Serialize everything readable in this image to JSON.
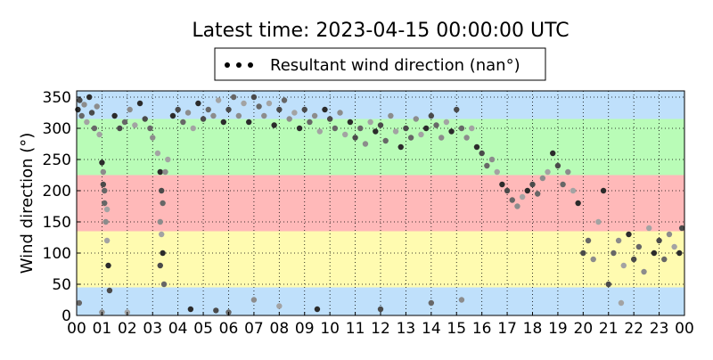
{
  "chart_data": {
    "type": "scatter",
    "title": "Latest time: 2023-04-15 00:00:00 UTC",
    "xlabel": "",
    "ylabel": "Wind direction (°)",
    "xlim": [
      0,
      24
    ],
    "ylim": [
      0,
      360
    ],
    "x_ticks": [
      "00",
      "01",
      "02",
      "03",
      "04",
      "05",
      "06",
      "07",
      "08",
      "09",
      "10",
      "11",
      "12",
      "13",
      "14",
      "15",
      "16",
      "17",
      "18",
      "19",
      "20",
      "21",
      "22",
      "23",
      "00"
    ],
    "y_ticks": [
      0,
      50,
      100,
      150,
      200,
      250,
      300,
      350
    ],
    "grid": true,
    "legend": {
      "placement": "top-center",
      "label": "Resultant wind direction (nan°)"
    },
    "bands": [
      {
        "from": 315,
        "to": 360,
        "color": "#bfe0fb"
      },
      {
        "from": 225,
        "to": 315,
        "color": "#b9fcb7"
      },
      {
        "from": 135,
        "to": 225,
        "color": "#ffb9b9"
      },
      {
        "from": 45,
        "to": 135,
        "color": "#fffbb0"
      },
      {
        "from": 0,
        "to": 45,
        "color": "#bfe0fb"
      }
    ],
    "series": [
      {
        "marker_colors": [
          "#2b2b2b",
          "#4a4a4a",
          "#676767",
          "#8c8c8c",
          "#a3a3a3"
        ],
        "points": [
          [
            0.05,
            330
          ],
          [
            0.12,
            345
          ],
          [
            0.2,
            320
          ],
          [
            0.3,
            338
          ],
          [
            0.4,
            310
          ],
          [
            0.5,
            350
          ],
          [
            0.6,
            325
          ],
          [
            0.7,
            300
          ],
          [
            0.8,
            335
          ],
          [
            0.9,
            290
          ],
          [
            1.0,
            245
          ],
          [
            1.05,
            210
          ],
          [
            1.1,
            180
          ],
          [
            1.15,
            150
          ],
          [
            1.2,
            120
          ],
          [
            1.25,
            80
          ],
          [
            1.3,
            40
          ],
          [
            1.1,
            200
          ],
          [
            1.05,
            230
          ],
          [
            1.2,
            170
          ],
          [
            1.5,
            320
          ],
          [
            1.7,
            300
          ],
          [
            1.9,
            310
          ],
          [
            2.1,
            330
          ],
          [
            2.3,
            305
          ],
          [
            2.5,
            340
          ],
          [
            2.7,
            315
          ],
          [
            2.9,
            300
          ],
          [
            3.0,
            285
          ],
          [
            3.2,
            260
          ],
          [
            3.3,
            230
          ],
          [
            3.35,
            200
          ],
          [
            3.4,
            180
          ],
          [
            3.3,
            150
          ],
          [
            3.35,
            130
          ],
          [
            3.4,
            100
          ],
          [
            3.3,
            80
          ],
          [
            3.45,
            50
          ],
          [
            3.5,
            230
          ],
          [
            3.6,
            250
          ],
          [
            3.8,
            320
          ],
          [
            4.0,
            330
          ],
          [
            4.2,
            310
          ],
          [
            4.4,
            325
          ],
          [
            4.6,
            300
          ],
          [
            4.8,
            340
          ],
          [
            5.0,
            315
          ],
          [
            5.2,
            330
          ],
          [
            5.4,
            320
          ],
          [
            5.6,
            345
          ],
          [
            5.8,
            310
          ],
          [
            6.0,
            330
          ],
          [
            6.2,
            350
          ],
          [
            6.4,
            320
          ],
          [
            6.6,
            340
          ],
          [
            6.8,
            310
          ],
          [
            7.0,
            350
          ],
          [
            7.2,
            335
          ],
          [
            7.4,
            320
          ],
          [
            7.6,
            340
          ],
          [
            7.8,
            305
          ],
          [
            8.0,
            330
          ],
          [
            8.2,
            345
          ],
          [
            8.4,
            315
          ],
          [
            8.6,
            325
          ],
          [
            8.8,
            300
          ],
          [
            9.0,
            330
          ],
          [
            9.2,
            310
          ],
          [
            9.4,
            320
          ],
          [
            9.6,
            295
          ],
          [
            9.8,
            330
          ],
          [
            10.0,
            315
          ],
          [
            10.2,
            300
          ],
          [
            10.4,
            325
          ],
          [
            10.6,
            290
          ],
          [
            10.8,
            310
          ],
          [
            11.0,
            285
          ],
          [
            11.2,
            300
          ],
          [
            11.4,
            275
          ],
          [
            11.6,
            310
          ],
          [
            11.8,
            295
          ],
          [
            12.0,
            305
          ],
          [
            12.2,
            280
          ],
          [
            12.4,
            320
          ],
          [
            12.6,
            295
          ],
          [
            12.8,
            270
          ],
          [
            13.0,
            300
          ],
          [
            13.2,
            285
          ],
          [
            13.4,
            315
          ],
          [
            13.6,
            290
          ],
          [
            13.8,
            300
          ],
          [
            14.0,
            320
          ],
          [
            14.2,
            305
          ],
          [
            14.4,
            285
          ],
          [
            14.6,
            310
          ],
          [
            14.8,
            295
          ],
          [
            15.0,
            330
          ],
          [
            15.2,
            300
          ],
          [
            15.4,
            285
          ],
          [
            15.6,
            300
          ],
          [
            15.8,
            270
          ],
          [
            16.0,
            260
          ],
          [
            16.2,
            240
          ],
          [
            16.4,
            250
          ],
          [
            16.6,
            230
          ],
          [
            16.8,
            210
          ],
          [
            17.0,
            200
          ],
          [
            17.2,
            185
          ],
          [
            17.4,
            175
          ],
          [
            17.6,
            190
          ],
          [
            17.8,
            200
          ],
          [
            18.0,
            210
          ],
          [
            18.2,
            195
          ],
          [
            18.4,
            220
          ],
          [
            18.6,
            230
          ],
          [
            18.8,
            260
          ],
          [
            19.0,
            240
          ],
          [
            19.2,
            210
          ],
          [
            19.4,
            230
          ],
          [
            19.6,
            200
          ],
          [
            19.8,
            180
          ],
          [
            20.0,
            100
          ],
          [
            20.2,
            120
          ],
          [
            20.4,
            90
          ],
          [
            20.6,
            150
          ],
          [
            20.8,
            200
          ],
          [
            21.0,
            50
          ],
          [
            21.2,
            100
          ],
          [
            21.4,
            120
          ],
          [
            21.6,
            80
          ],
          [
            21.8,
            130
          ],
          [
            22.0,
            90
          ],
          [
            22.2,
            110
          ],
          [
            22.4,
            70
          ],
          [
            22.6,
            140
          ],
          [
            22.8,
            100
          ],
          [
            23.0,
            120
          ],
          [
            23.2,
            90
          ],
          [
            23.4,
            130
          ],
          [
            23.6,
            110
          ],
          [
            23.8,
            100
          ],
          [
            23.9,
            140
          ],
          [
            0.1,
            20
          ],
          [
            1.0,
            5
          ],
          [
            2.0,
            5
          ],
          [
            4.5,
            10
          ],
          [
            5.5,
            8
          ],
          [
            6.0,
            5
          ],
          [
            7.0,
            25
          ],
          [
            8.0,
            15
          ],
          [
            9.5,
            10
          ],
          [
            12.0,
            10
          ],
          [
            14.0,
            20
          ],
          [
            15.2,
            25
          ],
          [
            21.5,
            20
          ]
        ]
      }
    ]
  }
}
